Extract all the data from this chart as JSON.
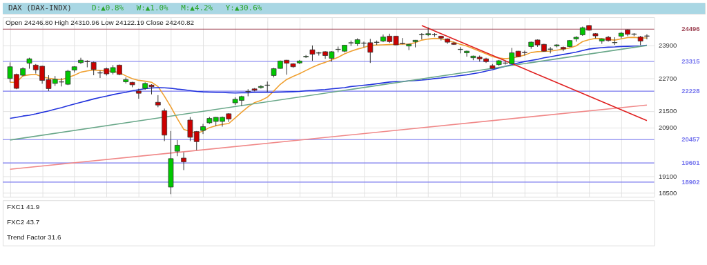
{
  "chart_data": {
    "type": "candlestick",
    "title": "DAX (DAX-INDX)",
    "subtitle": "Open 24246.80  High 24310.96  Low 24122.19  Close 24240.82",
    "annotations": [
      "D:▲0.8%",
      "W:▲1.0%",
      "M:▲4.2%",
      "Y:▲30.6%",
      "FXC1 41.9",
      "FXC2 43.7",
      "Trend Factor 31.6"
    ],
    "categories": [
      null,
      null,
      null,
      null,
      null,
      null,
      null,
      null,
      null,
      null,
      null,
      null,
      null,
      null,
      null,
      null,
      null,
      null,
      null,
      null,
      null,
      null,
      null,
      null,
      null,
      null,
      null,
      null,
      null,
      null,
      null,
      null,
      null,
      null,
      null,
      null,
      null,
      null,
      null,
      null,
      null,
      null,
      null,
      null,
      null,
      null,
      null,
      null,
      null,
      null,
      null,
      null,
      null,
      null,
      null,
      null,
      null,
      null,
      null,
      null,
      null,
      null,
      null,
      null,
      null,
      null,
      null,
      null,
      null,
      null,
      null,
      null,
      null,
      null,
      null,
      null,
      null,
      null,
      null,
      null,
      null,
      null,
      null,
      null,
      null,
      null,
      null,
      null,
      null,
      null,
      null,
      null,
      null,
      null,
      null,
      null,
      null,
      null,
      null,
      null
    ],
    "ohlc": [
      [
        22690,
        23280,
        22550,
        23120
      ],
      [
        22840,
        22870,
        22300,
        22330
      ],
      [
        22810,
        23100,
        22770,
        23050
      ],
      [
        23250,
        23450,
        23050,
        23410
      ],
      [
        23180,
        23220,
        22870,
        23010
      ],
      [
        23140,
        23160,
        22500,
        22620
      ],
      [
        22650,
        22810,
        22230,
        22320
      ],
      [
        22510,
        22780,
        22420,
        22660
      ],
      [
        22570,
        22710,
        22400,
        22560
      ],
      [
        22480,
        23010,
        22450,
        22960
      ],
      [
        23000,
        23140,
        22910,
        23120
      ],
      [
        23270,
        23450,
        23220,
        23360
      ],
      [
        23320,
        23360,
        23100,
        23310
      ],
      [
        23280,
        23310,
        22810,
        23020
      ],
      [
        22900,
        22980,
        22710,
        22890
      ],
      [
        23050,
        23090,
        22800,
        22860
      ],
      [
        22910,
        23180,
        22840,
        23090
      ],
      [
        23180,
        23200,
        22810,
        22840
      ],
      [
        22570,
        22730,
        22510,
        22650
      ],
      [
        22550,
        22570,
        22370,
        22460
      ],
      [
        22230,
        22320,
        21950,
        22150
      ],
      [
        22330,
        22550,
        22280,
        22510
      ],
      [
        22450,
        22480,
        22110,
        22390
      ],
      [
        21820,
        22080,
        21640,
        21720
      ],
      [
        21510,
        21590,
        20400,
        20620
      ],
      [
        18720,
        20770,
        18460,
        19760
      ],
      [
        20030,
        20440,
        19850,
        20250
      ],
      [
        19780,
        19990,
        19340,
        19640
      ],
      [
        21170,
        21280,
        20400,
        20540
      ],
      [
        20750,
        20770,
        20070,
        20380
      ],
      [
        20790,
        21030,
        20660,
        20930
      ],
      [
        21070,
        21280,
        21030,
        21230
      ],
      [
        21120,
        21280,
        20950,
        21270
      ],
      [
        21120,
        21300,
        20930,
        21270
      ],
      [
        21400,
        21420,
        21100,
        21210
      ],
      [
        21800,
        22000,
        21720,
        21930
      ],
      [
        21890,
        22060,
        21690,
        22030
      ],
      [
        22220,
        22300,
        22040,
        22210
      ],
      [
        22310,
        22340,
        22220,
        22260
      ],
      [
        22360,
        22450,
        22320,
        22400
      ],
      [
        22440,
        22580,
        22200,
        22450
      ],
      [
        22800,
        23080,
        22730,
        23050
      ],
      [
        23060,
        23350,
        23050,
        23330
      ],
      [
        23360,
        23370,
        22830,
        23250
      ],
      [
        23230,
        23250,
        23080,
        23120
      ],
      [
        23260,
        23370,
        23220,
        23330
      ],
      [
        23480,
        23550,
        23440,
        23500
      ],
      [
        23740,
        23900,
        23340,
        23580
      ],
      [
        23620,
        23670,
        23530,
        23630
      ],
      [
        23670,
        23690,
        23410,
        23530
      ],
      [
        23430,
        23690,
        23310,
        23670
      ],
      [
        23750,
        23860,
        23650,
        23760
      ],
      [
        23690,
        23920,
        23650,
        23910
      ],
      [
        23990,
        24080,
        23880,
        24000
      ],
      [
        23960,
        24160,
        23880,
        24110
      ],
      [
        23980,
        24040,
        23830,
        23990
      ],
      [
        24000,
        24140,
        23260,
        23650
      ],
      [
        24010,
        24080,
        23920,
        24020
      ],
      [
        24060,
        24300,
        24020,
        24210
      ],
      [
        24240,
        24330,
        23990,
        24040
      ],
      [
        24240,
        24250,
        23910,
        23920
      ],
      [
        23980,
        24170,
        23940,
        23970
      ],
      [
        23880,
        23960,
        23730,
        23940
      ],
      [
        24040,
        24100,
        23830,
        24090
      ],
      [
        24290,
        24350,
        24120,
        24300
      ],
      [
        24290,
        24560,
        24240,
        24330
      ],
      [
        24300,
        24350,
        24220,
        24290
      ],
      [
        24240,
        24250,
        24080,
        24170
      ],
      [
        24140,
        24160,
        23960,
        24020
      ],
      [
        23990,
        24040,
        23920,
        23940
      ],
      [
        23750,
        23840,
        23610,
        23760
      ],
      [
        23630,
        23710,
        23490,
        23690
      ],
      [
        23450,
        23530,
        23360,
        23510
      ],
      [
        23470,
        23530,
        23310,
        23410
      ],
      [
        23410,
        23450,
        23260,
        23310
      ],
      [
        23160,
        23220,
        23050,
        23060
      ],
      [
        23200,
        23370,
        23150,
        23340
      ],
      [
        23260,
        23340,
        23200,
        23250
      ],
      [
        23230,
        23810,
        23220,
        23630
      ],
      [
        23690,
        23700,
        23470,
        23490
      ],
      [
        23650,
        23710,
        23530,
        23640
      ],
      [
        23860,
        24040,
        23780,
        24020
      ],
      [
        24100,
        24120,
        23850,
        23920
      ],
      [
        23940,
        23960,
        23670,
        23690
      ],
      [
        23760,
        23840,
        23610,
        23770
      ],
      [
        23880,
        23940,
        23830,
        23920
      ],
      [
        23830,
        23860,
        23690,
        23770
      ],
      [
        23860,
        24100,
        23830,
        24080
      ],
      [
        24140,
        24240,
        24040,
        24200
      ],
      [
        24290,
        24590,
        24250,
        24550
      ],
      [
        24630,
        24640,
        24440,
        24460
      ],
      [
        24330,
        24350,
        24160,
        24250
      ],
      [
        24060,
        24160,
        23960,
        24140
      ],
      [
        24200,
        24250,
        24040,
        24080
      ],
      [
        24000,
        24200,
        23920,
        24010
      ],
      [
        24240,
        24390,
        24160,
        24350
      ],
      [
        24470,
        24490,
        24240,
        24310
      ],
      [
        24310,
        24350,
        24240,
        24320
      ],
      [
        24210,
        24250,
        23910,
        24060
      ],
      [
        24246.8,
        24310.96,
        24122.19,
        24240.82
      ]
    ],
    "series": [
      {
        "type": "line",
        "color": "#f0a030",
        "values": [
          22553,
          22553,
          22788,
          22827,
          22843,
          22749,
          22702,
          22663,
          22647,
          22726,
          22812,
          22921,
          22968,
          23000,
          22984,
          22968,
          22953,
          22906,
          22788,
          22687,
          22624,
          22593,
          22553,
          22397,
          22045,
          21653,
          21223,
          20831,
          null,
          20675,
          20769,
          20894,
          20964,
          21011,
          21043,
          21246,
          21458,
          21653,
          21810,
          21888,
          22006,
          22233,
          22475,
          22655,
          22765,
          22866,
          22984,
          23101,
          23203,
          23281,
          23375,
          23469,
          23594,
          23688,
          23767,
          23829,
          23900,
          23915,
          23923,
          23931,
          23939,
          23947,
          23955,
          24001,
          24095,
          24134,
          24158,
          24142,
          24080,
          24017,
          23939,
          23876,
          23782,
          23688,
          23594,
          23493,
          23438,
          23414,
          23438,
          23485,
          23547,
          23641,
          23673,
          23681,
          23696,
          23727,
          23767,
          23806,
          23884,
          24041,
          24111,
          24158,
          24150,
          24119,
          24095,
          24142,
          24189,
          24197,
          24174,
          24174
        ]
      },
      {
        "type": "line",
        "color": "#2233dd",
        "values": [
          21231,
          21270,
          21317,
          21348,
          21395,
          21450,
          21505,
          21567,
          21622,
          21692,
          21755,
          21818,
          21880,
          21943,
          21998,
          22045,
          22100,
          22147,
          22186,
          22241,
          22280,
          22319,
          22342,
          22358,
          22350,
          22334,
          22303,
          22280,
          22248,
          22217,
          22201,
          22194,
          22186,
          22178,
          22170,
          22162,
          22170,
          22170,
          22178,
          22178,
          22186,
          22186,
          22194,
          22201,
          22209,
          22217,
          22241,
          22256,
          22272,
          22287,
          22311,
          22334,
          22358,
          22397,
          22420,
          22444,
          22467,
          22499,
          22530,
          22561,
          22577,
          22585,
          22601,
          22616,
          22632,
          22655,
          22687,
          22710,
          22741,
          22765,
          22796,
          22827,
          22866,
          22906,
          22960,
          23015,
          23078,
          23140,
          23195,
          23258,
          23313,
          23352,
          23391,
          23446,
          23485,
          23532,
          23571,
          23610,
          23657,
          23712,
          23767,
          23798,
          23821,
          23837,
          23845,
          23861,
          23868,
          23876,
          23884,
          23908
        ]
      },
      {
        "type": "line",
        "color": "#6aa88a",
        "values": [
          20440,
          null,
          null,
          null,
          null,
          null,
          null,
          null,
          null,
          null,
          null,
          null,
          null,
          null,
          null,
          null,
          null,
          null,
          null,
          null,
          null,
          null,
          null,
          null,
          null,
          null,
          null,
          null,
          null,
          null,
          null,
          null,
          null,
          null,
          null,
          null,
          null,
          null,
          null,
          null,
          null,
          null,
          null,
          null,
          null,
          null,
          null,
          null,
          null,
          null,
          null,
          null,
          null,
          null,
          null,
          null,
          null,
          null,
          null,
          null,
          null,
          null,
          null,
          null,
          null,
          null,
          null,
          null,
          null,
          null,
          null,
          null,
          null,
          null,
          null,
          null,
          null,
          null,
          null,
          null,
          null,
          null,
          null,
          null,
          null,
          null,
          null,
          null,
          null,
          null,
          null,
          null,
          null,
          null,
          null,
          null,
          null,
          null,
          null,
          23900
        ]
      },
      {
        "type": "line",
        "color": "#f08888",
        "values": [
          19370,
          null,
          null,
          null,
          null,
          null,
          null,
          null,
          null,
          null,
          null,
          null,
          null,
          null,
          null,
          null,
          null,
          null,
          null,
          null,
          null,
          null,
          null,
          null,
          null,
          null,
          null,
          null,
          null,
          null,
          null,
          null,
          null,
          null,
          null,
          null,
          null,
          null,
          null,
          null,
          null,
          null,
          null,
          null,
          null,
          null,
          null,
          null,
          null,
          null,
          null,
          null,
          null,
          null,
          null,
          null,
          null,
          null,
          null,
          null,
          null,
          null,
          null,
          null,
          null,
          null,
          null,
          null,
          null,
          null,
          null,
          null,
          null,
          null,
          null,
          null,
          null,
          null,
          null,
          null,
          null,
          null,
          null,
          null,
          null,
          null,
          null,
          null,
          null,
          null,
          null,
          null,
          null,
          null,
          null,
          null,
          null,
          null,
          null,
          21720
        ]
      },
      {
        "type": "line",
        "color": "#e02020",
        "values": [
          null,
          null,
          null,
          null,
          null,
          null,
          null,
          null,
          null,
          null,
          null,
          null,
          null,
          null,
          null,
          null,
          null,
          null,
          null,
          null,
          null,
          null,
          null,
          null,
          null,
          null,
          null,
          null,
          null,
          null,
          null,
          null,
          null,
          null,
          null,
          null,
          null,
          null,
          null,
          null,
          null,
          null,
          null,
          null,
          null,
          null,
          null,
          null,
          null,
          null,
          null,
          null,
          null,
          null,
          null,
          null,
          null,
          null,
          null,
          null,
          null,
          null,
          null,
          null,
          24630,
          null,
          null,
          null,
          null,
          null,
          null,
          null,
          null,
          null,
          null,
          null,
          null,
          null,
          null,
          null,
          null,
          null,
          null,
          null,
          null,
          null,
          null,
          null,
          null,
          null,
          null,
          null,
          null,
          null,
          null,
          null,
          null,
          null,
          null,
          21150
        ]
      }
    ],
    "ylim": [
      18360,
      24930
    ],
    "yticks": [
      18500,
      19100,
      20900,
      21500,
      22700,
      23900
    ],
    "ref_lines": [
      {
        "axis": "y",
        "value": 24496,
        "label": "24496",
        "color": "#a04858"
      },
      {
        "axis": "y",
        "value": 23315,
        "label": "23315",
        "color": "#7777ee"
      },
      {
        "axis": "y",
        "value": 22228,
        "label": "22228",
        "color": "#7777ee"
      },
      {
        "axis": "y",
        "value": 20457,
        "label": "20457",
        "color": "#7777ee"
      },
      {
        "axis": "y",
        "value": 19601,
        "label": "19601",
        "color": "#7777ee"
      },
      {
        "axis": "y",
        "value": 18902,
        "label": "18902",
        "color": "#7777ee"
      }
    ],
    "grid": true
  }
}
